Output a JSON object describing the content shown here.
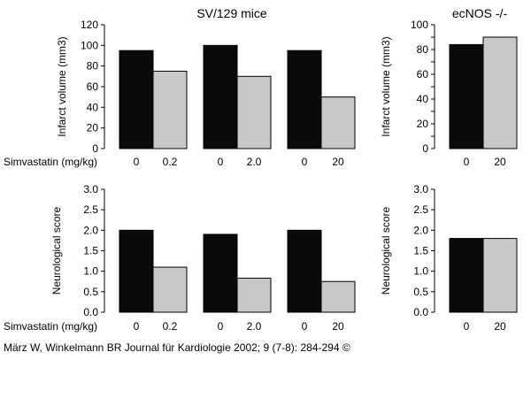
{
  "figure": {
    "credit": "März W, Winkelmann BR Journal für Kardiologie 2002; 9 (7-8): 284-294 ©"
  },
  "colors": {
    "bar_dark": "#0a0a0a",
    "bar_light": "#c8c8c8",
    "stroke": "#000000"
  },
  "chart_data": [
    {
      "type": "bar",
      "title": "SV/129 mice",
      "ylabel": "Infarct volume (mm3)",
      "xlabel": "Simvastatin (mg/kg)",
      "ylim": [
        0,
        120
      ],
      "yticks": [
        0,
        20,
        40,
        60,
        80,
        100,
        120
      ],
      "ytick_labels": [
        "0",
        "20",
        "40",
        "60",
        "80",
        "100",
        "120"
      ],
      "groups": [
        {
          "categories": [
            "0",
            "0.2"
          ],
          "values": [
            95,
            75
          ]
        },
        {
          "categories": [
            "0",
            "2.0"
          ],
          "values": [
            100,
            70
          ]
        },
        {
          "categories": [
            "0",
            "20"
          ],
          "values": [
            95,
            50
          ]
        }
      ]
    },
    {
      "type": "bar",
      "title": "ecNOS -/-",
      "ylabel": "Infarct volume (mm3)",
      "xlabel": "",
      "ylim": [
        0,
        100
      ],
      "yticks": [
        0,
        10,
        20,
        30,
        40,
        50,
        60,
        70,
        80,
        90,
        100
      ],
      "ytick_labels": [
        "0",
        "",
        "20",
        "",
        "40",
        "",
        "60",
        "",
        "80",
        "",
        "100"
      ],
      "groups": [
        {
          "categories": [
            "0",
            "20"
          ],
          "values": [
            84,
            90
          ]
        }
      ]
    },
    {
      "type": "bar",
      "title": "",
      "ylabel": "Neurological score",
      "xlabel": "Simvastatin (mg/kg)",
      "ylim": [
        0,
        3.0
      ],
      "yticks": [
        0,
        0.5,
        1.0,
        1.5,
        2.0,
        2.5,
        3.0
      ],
      "ytick_labels": [
        "0.0",
        "0.5",
        "1.0",
        "1.5",
        "2.0",
        "2.5",
        "3.0"
      ],
      "groups": [
        {
          "categories": [
            "0",
            "0.2"
          ],
          "values": [
            2.0,
            1.1
          ]
        },
        {
          "categories": [
            "0",
            "2.0"
          ],
          "values": [
            1.9,
            0.83
          ]
        },
        {
          "categories": [
            "0",
            "20"
          ],
          "values": [
            2.0,
            0.75
          ]
        }
      ]
    },
    {
      "type": "bar",
      "title": "",
      "ylabel": "Neurological score",
      "xlabel": "",
      "ylim": [
        0,
        3.0
      ],
      "yticks": [
        0,
        0.5,
        1.0,
        1.5,
        2.0,
        2.5,
        3.0
      ],
      "ytick_labels": [
        "0.0",
        "0.5",
        "1.0",
        "1.5",
        "2.0",
        "2.5",
        "3.0"
      ],
      "groups": [
        {
          "categories": [
            "0",
            "20"
          ],
          "values": [
            1.8,
            1.8
          ]
        }
      ]
    }
  ]
}
